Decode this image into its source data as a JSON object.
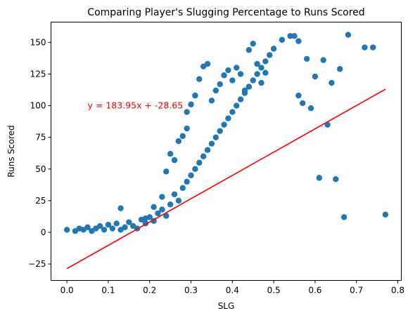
{
  "chart_data": {
    "type": "scatter",
    "title": "Comparing Player's Slugging Percentage to Runs Scored",
    "xlabel": "SLG",
    "ylabel": "Runs Scored",
    "xlim": [
      -0.0385,
      0.8085
    ],
    "ylim": [
      -38,
      166
    ],
    "xticks": [
      0.0,
      0.1,
      0.2,
      0.3,
      0.4,
      0.5,
      0.6,
      0.7,
      0.8
    ],
    "xtick_labels": [
      "0.0",
      "0.1",
      "0.2",
      "0.3",
      "0.4",
      "0.5",
      "0.6",
      "0.7",
      "0.8"
    ],
    "yticks": [
      -25,
      0,
      25,
      50,
      75,
      100,
      125,
      150
    ],
    "ytick_labels": [
      "−25",
      "0",
      "25",
      "50",
      "75",
      "100",
      "125",
      "150"
    ],
    "grid": false,
    "colors": {
      "points": "#1f77b4",
      "regression_line": "#ff0000",
      "annotation": "#ff0000"
    },
    "regression_line": {
      "slope": 183.95,
      "intercept": -28.65,
      "x_range": [
        0.0,
        0.77
      ]
    },
    "annotation": {
      "text": "y = 183.95x + -28.65",
      "x": 0.05,
      "y": 100
    },
    "points": [
      [
        0.0,
        2
      ],
      [
        0.02,
        1
      ],
      [
        0.03,
        3
      ],
      [
        0.04,
        2
      ],
      [
        0.05,
        4
      ],
      [
        0.06,
        1
      ],
      [
        0.07,
        3
      ],
      [
        0.08,
        5
      ],
      [
        0.09,
        2
      ],
      [
        0.1,
        6
      ],
      [
        0.11,
        3
      ],
      [
        0.12,
        7
      ],
      [
        0.13,
        2
      ],
      [
        0.14,
        4
      ],
      [
        0.15,
        8
      ],
      [
        0.16,
        5
      ],
      [
        0.17,
        3
      ],
      [
        0.18,
        10
      ],
      [
        0.19,
        7
      ],
      [
        0.2,
        12
      ],
      [
        0.21,
        9
      ],
      [
        0.22,
        15
      ],
      [
        0.23,
        18
      ],
      [
        0.24,
        13
      ],
      [
        0.25,
        22
      ],
      [
        0.26,
        30
      ],
      [
        0.27,
        25
      ],
      [
        0.28,
        35
      ],
      [
        0.29,
        40
      ],
      [
        0.3,
        45
      ],
      [
        0.31,
        50
      ],
      [
        0.32,
        55
      ],
      [
        0.33,
        60
      ],
      [
        0.34,
        65
      ],
      [
        0.35,
        70
      ],
      [
        0.36,
        75
      ],
      [
        0.37,
        80
      ],
      [
        0.38,
        85
      ],
      [
        0.39,
        90
      ],
      [
        0.4,
        95
      ],
      [
        0.41,
        100
      ],
      [
        0.42,
        105
      ],
      [
        0.43,
        110
      ],
      [
        0.44,
        115
      ],
      [
        0.45,
        120
      ],
      [
        0.46,
        125
      ],
      [
        0.47,
        130
      ],
      [
        0.48,
        135
      ],
      [
        0.49,
        140
      ],
      [
        0.5,
        145
      ],
      [
        0.13,
        19
      ],
      [
        0.19,
        11
      ],
      [
        0.21,
        20
      ],
      [
        0.23,
        28
      ],
      [
        0.24,
        48
      ],
      [
        0.25,
        62
      ],
      [
        0.26,
        57
      ],
      [
        0.27,
        72
      ],
      [
        0.28,
        76
      ],
      [
        0.29,
        82
      ],
      [
        0.29,
        95
      ],
      [
        0.3,
        101
      ],
      [
        0.31,
        108
      ],
      [
        0.32,
        121
      ],
      [
        0.33,
        131
      ],
      [
        0.34,
        133
      ],
      [
        0.35,
        104
      ],
      [
        0.36,
        112
      ],
      [
        0.37,
        117
      ],
      [
        0.38,
        124
      ],
      [
        0.39,
        128
      ],
      [
        0.4,
        120
      ],
      [
        0.41,
        130
      ],
      [
        0.42,
        125
      ],
      [
        0.43,
        112
      ],
      [
        0.44,
        144
      ],
      [
        0.45,
        149
      ],
      [
        0.46,
        133
      ],
      [
        0.47,
        118
      ],
      [
        0.48,
        126
      ],
      [
        0.52,
        152
      ],
      [
        0.54,
        155
      ],
      [
        0.55,
        155
      ],
      [
        0.56,
        151
      ],
      [
        0.58,
        137
      ],
      [
        0.6,
        123
      ],
      [
        0.62,
        136
      ],
      [
        0.64,
        118
      ],
      [
        0.66,
        129
      ],
      [
        0.68,
        156
      ],
      [
        0.72,
        146
      ],
      [
        0.74,
        146
      ],
      [
        0.77,
        14
      ],
      [
        0.67,
        12
      ],
      [
        0.65,
        42
      ],
      [
        0.61,
        43
      ],
      [
        0.63,
        85
      ],
      [
        0.59,
        98
      ],
      [
        0.57,
        102
      ],
      [
        0.56,
        108
      ]
    ],
    "point_count_note": ""
  }
}
